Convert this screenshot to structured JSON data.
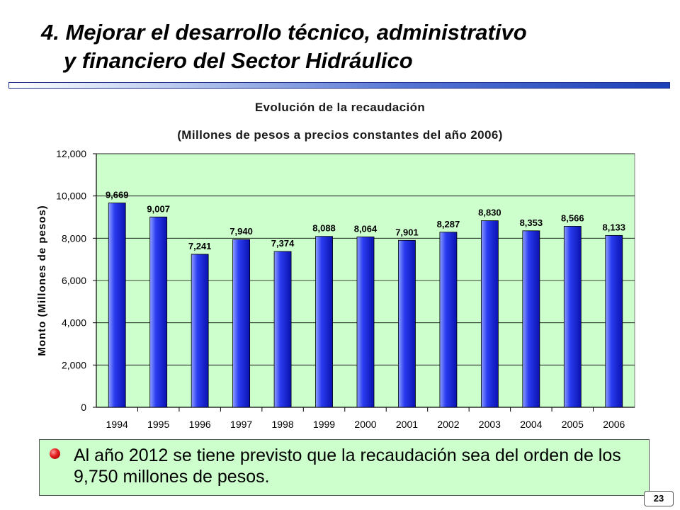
{
  "slide": {
    "title_line1": "4. Mejorar el desarrollo técnico, administrativo",
    "title_line2": "y financiero del Sector Hidráulico",
    "page_number": "23"
  },
  "chart_data": {
    "type": "bar",
    "title": "Evolución de la recaudación",
    "subtitle": "(Millones de pesos a precios constantes del año 2006)",
    "xlabel": "",
    "ylabel": "Monto (Millones de pesos)",
    "ylim": [
      0,
      12000
    ],
    "yticks": [
      0,
      2000,
      4000,
      6000,
      8000,
      10000,
      12000
    ],
    "ytick_labels": [
      "0",
      "2,000",
      "4,000",
      "6,000",
      "8,000",
      "10,000",
      "12,000"
    ],
    "grid": "horizontal",
    "plot_background": "#ccffcc",
    "bar_color": "#2a3cf0",
    "categories": [
      "1994",
      "1995",
      "1996",
      "1997",
      "1998",
      "1999",
      "2000",
      "2001",
      "2002",
      "2003",
      "2004",
      "2005",
      "2006"
    ],
    "values": [
      9669,
      9007,
      7241,
      7940,
      7374,
      8088,
      8064,
      7901,
      8287,
      8830,
      8353,
      8566,
      8133
    ],
    "data_labels": [
      "9,669",
      "9,007",
      "7,241",
      "7,940",
      "7,374",
      "8,088",
      "8,064",
      "7,901",
      "8,287",
      "8,830",
      "8,353",
      "8,566",
      "8,133"
    ]
  },
  "callout": {
    "icon": "bullet-icon",
    "text": "Al año 2012 se tiene previsto que la recaudación sea del orden de los 9,750 millones de pesos."
  }
}
